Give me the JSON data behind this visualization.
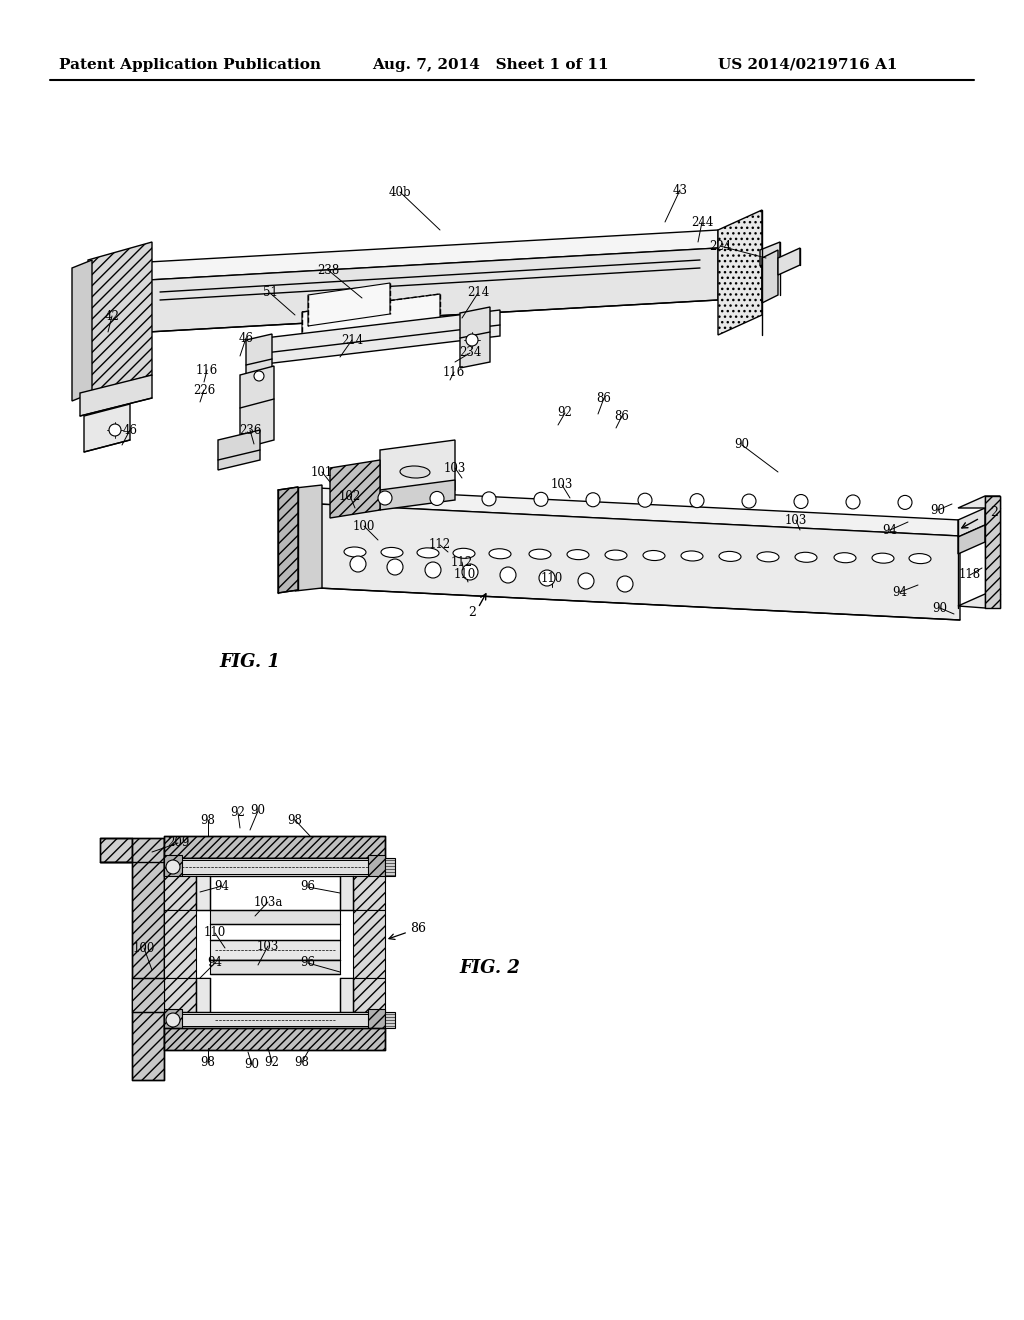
{
  "background_color": "#ffffff",
  "header_left": "Patent Application Publication",
  "header_center": "Aug. 7, 2014   Sheet 1 of 11",
  "header_right": "US 2014/0219716 A1",
  "fig1_caption": "FIG. 1",
  "fig2_caption": "FIG. 2",
  "lc": "black",
  "lw": 1.0,
  "fig1_labels": [
    [
      "40b",
      395,
      195
    ],
    [
      "43",
      678,
      192
    ],
    [
      "244",
      700,
      222
    ],
    [
      "224",
      718,
      248
    ],
    [
      "238",
      325,
      272
    ],
    [
      "51",
      268,
      295
    ],
    [
      "214",
      478,
      295
    ],
    [
      "214",
      350,
      342
    ],
    [
      "234",
      468,
      355
    ],
    [
      "116",
      450,
      374
    ],
    [
      "46",
      246,
      340
    ],
    [
      "116",
      205,
      372
    ],
    [
      "226",
      202,
      392
    ],
    [
      "46",
      128,
      432
    ],
    [
      "42",
      112,
      318
    ],
    [
      "236",
      248,
      432
    ],
    [
      "92",
      564,
      415
    ],
    [
      "86",
      602,
      400
    ],
    [
      "86",
      620,
      418
    ],
    [
      "90",
      740,
      447
    ],
    [
      "103",
      455,
      470
    ],
    [
      "103",
      562,
      487
    ],
    [
      "103",
      795,
      523
    ],
    [
      "101",
      322,
      475
    ],
    [
      "102",
      348,
      498
    ],
    [
      "100",
      362,
      528
    ],
    [
      "112",
      437,
      548
    ],
    [
      "112",
      460,
      565
    ],
    [
      "110",
      462,
      577
    ],
    [
      "110",
      550,
      580
    ],
    [
      "94",
      890,
      532
    ],
    [
      "94",
      900,
      594
    ],
    [
      "90",
      940,
      512
    ],
    [
      "90",
      940,
      610
    ],
    [
      "118",
      972,
      577
    ],
    [
      "2",
      998,
      530
    ]
  ],
  "fig2_labels": [
    [
      "209",
      178,
      845
    ],
    [
      "98",
      207,
      823
    ],
    [
      "92",
      238,
      816
    ],
    [
      "90",
      257,
      814
    ],
    [
      "98",
      294,
      823
    ],
    [
      "94",
      221,
      888
    ],
    [
      "96",
      305,
      889
    ],
    [
      "103a",
      265,
      905
    ],
    [
      "100",
      146,
      951
    ],
    [
      "110",
      213,
      936
    ],
    [
      "103",
      265,
      949
    ],
    [
      "94",
      213,
      966
    ],
    [
      "96",
      305,
      966
    ],
    [
      "98",
      207,
      1064
    ],
    [
      "90",
      252,
      1067
    ],
    [
      "92",
      272,
      1064
    ],
    [
      "98",
      300,
      1064
    ],
    [
      "86",
      390,
      935
    ]
  ]
}
